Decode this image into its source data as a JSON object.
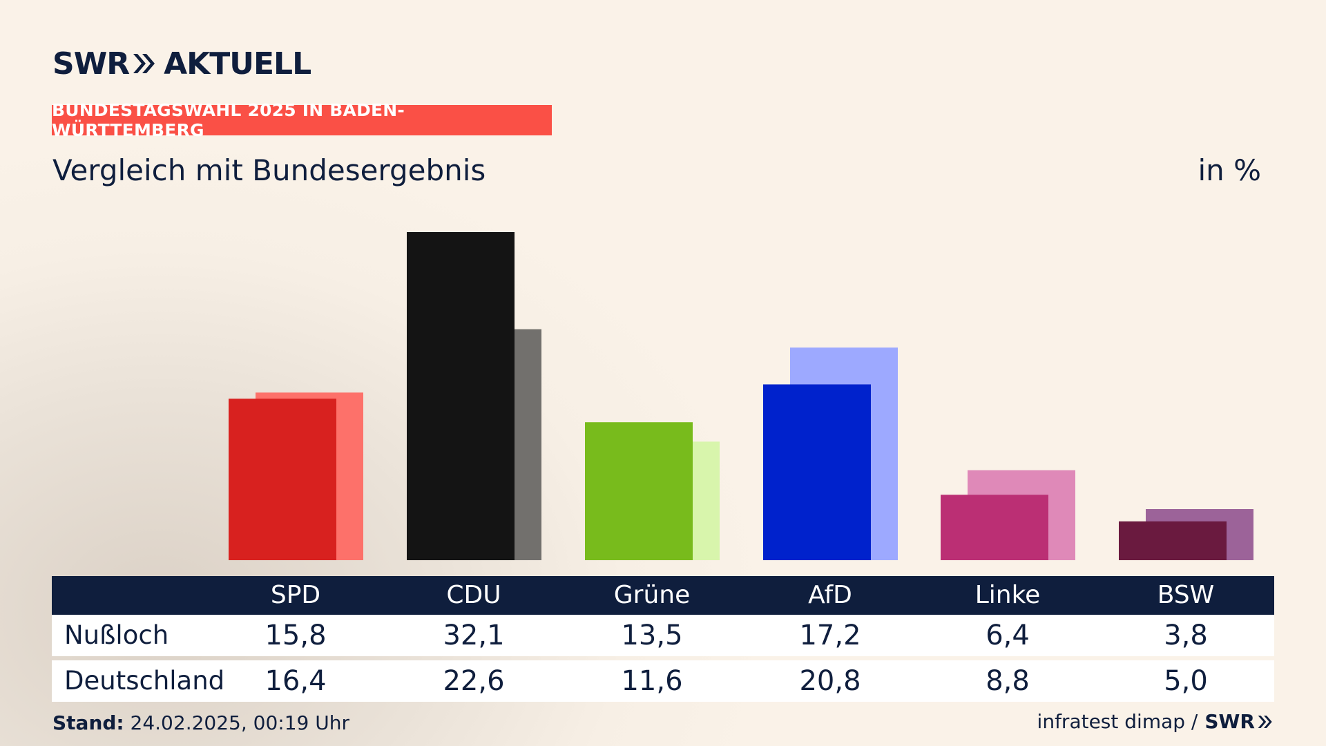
{
  "header": {
    "brand": "SWR",
    "product": "AKTUELL",
    "banner": "BUNDESTAGSWAHL 2025 IN BADEN-WÜRTTEMBERG",
    "subtitle": "Vergleich mit Bundesergebnis",
    "unit": "in %"
  },
  "colors": {
    "navy": "#0f1e3d",
    "banner": "#fa5046"
  },
  "chart_data": {
    "type": "bar",
    "title": "Vergleich mit Bundesergebnis",
    "unit": "in %",
    "categories": [
      "SPD",
      "CDU",
      "Grüne",
      "AfD",
      "Linke",
      "BSW"
    ],
    "series": [
      {
        "name": "Nußloch",
        "values": [
          15.8,
          32.1,
          13.5,
          17.2,
          6.4,
          3.8
        ],
        "display": [
          "15,8",
          "32,1",
          "13,5",
          "17,2",
          "6,4",
          "3,8"
        ],
        "colors": [
          "#d8211f",
          "#141414",
          "#78bb1c",
          "#0022cc",
          "#bb2f74",
          "#6a1a3f"
        ]
      },
      {
        "name": "Deutschland",
        "values": [
          16.4,
          22.6,
          11.6,
          20.8,
          8.8,
          5.0
        ],
        "display": [
          "16,4",
          "22,6",
          "11,6",
          "20,8",
          "8,8",
          "5,0"
        ],
        "colors": [
          "#fd716a",
          "#72706d",
          "#d8f5ac",
          "#9da9ff",
          "#df89b8",
          "#9c6399"
        ]
      }
    ],
    "ylim": [
      0,
      32.1
    ],
    "grid": false,
    "legend": "table-below"
  },
  "footer": {
    "stand_label": "Stand:",
    "stand_value": "24.02.2025, 00:19 Uhr",
    "source": "infratest dimap /",
    "source_brand": "SWR"
  }
}
